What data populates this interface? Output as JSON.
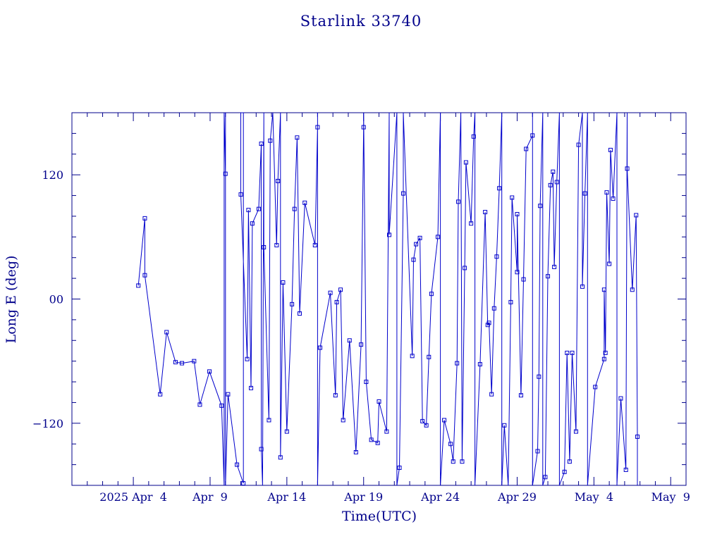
{
  "chart_data": {
    "type": "line",
    "title": "Starlink 33740",
    "xlabel": "Time(UTC)",
    "ylabel": "Long E (deg)",
    "x_is_date": true,
    "xlim": [
      "2025-03-31T00:00",
      "2025-05-10T00:00"
    ],
    "ylim": [
      -180,
      180
    ],
    "grid": false,
    "legend": "none",
    "color": "#0000cc",
    "x_tick_labels": [
      {
        "date": "2025-04-04",
        "label": "2025 Apr  4"
      },
      {
        "date": "2025-04-09",
        "label": "Apr  9"
      },
      {
        "date": "2025-04-14",
        "label": "Apr 14"
      },
      {
        "date": "2025-04-19",
        "label": "Apr 19"
      },
      {
        "date": "2025-04-24",
        "label": "Apr 24"
      },
      {
        "date": "2025-04-29",
        "label": "Apr 29"
      },
      {
        "date": "2025-05-04",
        "label": "May  4"
      },
      {
        "date": "2025-05-09",
        "label": "May  9"
      }
    ],
    "y_ticks": [
      -120,
      0,
      120
    ],
    "y_tick_labels": [
      "−120",
      "00",
      "120"
    ],
    "points": [
      [
        "2025-04-04 07:50",
        13
      ],
      [
        "2025-04-04 18:00",
        78
      ],
      [
        "2025-04-04 18:00",
        23
      ],
      [
        "2025-04-05 18:00",
        -92
      ],
      [
        "2025-04-06 04:00",
        -32
      ],
      [
        "2025-04-06 18:00",
        -61
      ],
      [
        "2025-04-07 04:00",
        -62
      ],
      [
        "2025-04-07 23:00",
        -60
      ],
      [
        "2025-04-08 08:00",
        -102
      ],
      [
        "2025-04-08 23:00",
        -70
      ],
      [
        "2025-04-09 18:00",
        -103
      ],
      [
        "2025-04-09 22:00",
        -180
      ],
      [
        "2025-04-09 22:00",
        180
      ],
      [
        "2025-04-10 00:00",
        121
      ],
      [
        "2025-04-10 00:00",
        180
      ],
      [
        "2025-04-10 00:00",
        -180
      ],
      [
        "2025-04-10 04:00",
        -92
      ],
      [
        "2025-04-10 18:00",
        -160
      ],
      [
        "2025-04-11 04:00",
        -178
      ],
      [
        "2025-04-11 04:00",
        180
      ],
      [
        "2025-04-11 00:00",
        180
      ],
      [
        "2025-04-11 00:00",
        101
      ],
      [
        "2025-04-11 10:00",
        -58
      ],
      [
        "2025-04-11 12:00",
        86
      ],
      [
        "2025-04-11 16:00",
        -86
      ],
      [
        "2025-04-11 18:00",
        73
      ],
      [
        "2025-04-12 04:00",
        87
      ],
      [
        "2025-04-12 08:00",
        150
      ],
      [
        "2025-04-12 08:00",
        -145
      ],
      [
        "2025-04-12 10:00",
        -180
      ],
      [
        "2025-04-12 12:00",
        180
      ],
      [
        "2025-04-12 12:00",
        50
      ],
      [
        "2025-04-12 20:00",
        -117
      ],
      [
        "2025-04-12 22:00",
        153
      ],
      [
        "2025-04-13 02:00",
        180
      ],
      [
        "2025-04-13 08:00",
        52
      ],
      [
        "2025-04-13 10:00",
        114
      ],
      [
        "2025-04-13 14:00",
        180
      ],
      [
        "2025-04-13 14:00",
        -153
      ],
      [
        "2025-04-13 18:00",
        16
      ],
      [
        "2025-04-14 00:00",
        -128
      ],
      [
        "2025-04-14 08:00",
        -5
      ],
      [
        "2025-04-14 12:00",
        87
      ],
      [
        "2025-04-14 16:00",
        156
      ],
      [
        "2025-04-14 20:00",
        -14
      ],
      [
        "2025-04-15 04:00",
        93
      ],
      [
        "2025-04-15 20:00",
        52
      ],
      [
        "2025-04-16 00:00",
        166
      ],
      [
        "2025-04-16 00:00",
        180
      ],
      [
        "2025-04-16 00:00",
        -180
      ],
      [
        "2025-04-16 04:00",
        -47
      ],
      [
        "2025-04-16 20:00",
        6
      ],
      [
        "2025-04-17 04:00",
        -93
      ],
      [
        "2025-04-17 06:00",
        -3
      ],
      [
        "2025-04-17 12:00",
        9
      ],
      [
        "2025-04-17 16:00",
        -117
      ],
      [
        "2025-04-18 02:00",
        -40
      ],
      [
        "2025-04-18 12:00",
        -148
      ],
      [
        "2025-04-18 20:00",
        -44
      ],
      [
        "2025-04-19 00:00",
        166
      ],
      [
        "2025-04-19 00:00",
        180
      ],
      [
        "2025-04-19 04:00",
        -80
      ],
      [
        "2025-04-19 12:00",
        -136
      ],
      [
        "2025-04-19 22:00",
        -139
      ],
      [
        "2025-04-20 00:00",
        -99
      ],
      [
        "2025-04-20 12:00",
        -128
      ],
      [
        "2025-04-20 16:00",
        180
      ],
      [
        "2025-04-20 16:00",
        62
      ],
      [
        "2025-04-21 04:00",
        180
      ],
      [
        "2025-04-21 04:00",
        -180
      ],
      [
        "2025-04-21 08:00",
        -163
      ],
      [
        "2025-04-21 14:00",
        102
      ],
      [
        "2025-04-21 14:00",
        180
      ],
      [
        "2025-04-22 04:00",
        -55
      ],
      [
        "2025-04-22 06:00",
        38
      ],
      [
        "2025-04-22 10:00",
        53
      ],
      [
        "2025-04-22 16:00",
        59
      ],
      [
        "2025-04-22 20:00",
        -118
      ],
      [
        "2025-04-23 02:00",
        -122
      ],
      [
        "2025-04-23 06:00",
        -56
      ],
      [
        "2025-04-23 10:00",
        5
      ],
      [
        "2025-04-23 20:00",
        60
      ],
      [
        "2025-04-24 00:00",
        180
      ],
      [
        "2025-04-24 00:00",
        -180
      ],
      [
        "2025-04-24 06:00",
        -117
      ],
      [
        "2025-04-24 16:00",
        -140
      ],
      [
        "2025-04-24 20:00",
        -157
      ],
      [
        "2025-04-25 02:00",
        -62
      ],
      [
        "2025-04-25 04:00",
        94
      ],
      [
        "2025-04-25 08:00",
        180
      ],
      [
        "2025-04-25 10:00",
        -157
      ],
      [
        "2025-04-25 14:00",
        30
      ],
      [
        "2025-04-25 16:00",
        132
      ],
      [
        "2025-04-26 00:00",
        73
      ],
      [
        "2025-04-26 04:00",
        157
      ],
      [
        "2025-04-26 06:00",
        180
      ],
      [
        "2025-04-26 06:00",
        -180
      ],
      [
        "2025-04-26 14:00",
        -63
      ],
      [
        "2025-04-26 22:00",
        84
      ],
      [
        "2025-04-27 02:00",
        -25
      ],
      [
        "2025-04-27 04:00",
        -23
      ],
      [
        "2025-04-27 08:00",
        -92
      ],
      [
        "2025-04-27 12:00",
        -9
      ],
      [
        "2025-04-27 16:00",
        41
      ],
      [
        "2025-04-27 20:00",
        107
      ],
      [
        "2025-04-28 00:00",
        180
      ],
      [
        "2025-04-28 00:00",
        -180
      ],
      [
        "2025-04-28 04:00",
        -122
      ],
      [
        "2025-04-28 10:00",
        -180
      ],
      [
        "2025-04-28 14:00",
        -3
      ],
      [
        "2025-04-28 16:00",
        98
      ],
      [
        "2025-04-29 00:00",
        26
      ],
      [
        "2025-04-29 00:00",
        82
      ],
      [
        "2025-04-29 06:00",
        -93
      ],
      [
        "2025-04-29 10:00",
        19
      ],
      [
        "2025-04-29 14:00",
        145
      ],
      [
        "2025-04-30 00:00",
        158
      ],
      [
        "2025-04-30 00:00",
        180
      ],
      [
        "2025-04-30 00:00",
        -180
      ],
      [
        "2025-04-30 08:00",
        -147
      ],
      [
        "2025-04-30 10:00",
        -75
      ],
      [
        "2025-04-30 12:00",
        90
      ],
      [
        "2025-04-30 16:00",
        180
      ],
      [
        "2025-04-30 16:00",
        -180
      ],
      [
        "2025-04-30 20:00",
        -172
      ],
      [
        "2025-05-01 00:00",
        22
      ],
      [
        "2025-05-01 04:00",
        110
      ],
      [
        "2025-05-01 08:00",
        123
      ],
      [
        "2025-05-01 10:00",
        31
      ],
      [
        "2025-05-01 14:00",
        113
      ],
      [
        "2025-05-01 18:00",
        180
      ],
      [
        "2025-05-01 18:00",
        -180
      ],
      [
        "2025-05-02 02:00",
        -167
      ],
      [
        "2025-05-02 06:00",
        -52
      ],
      [
        "2025-05-02 10:00",
        -157
      ],
      [
        "2025-05-02 14:00",
        -52
      ],
      [
        "2025-05-02 20:00",
        -128
      ],
      [
        "2025-05-03 00:00",
        149
      ],
      [
        "2025-05-03 06:00",
        180
      ],
      [
        "2025-05-03 06:00",
        12
      ],
      [
        "2025-05-03 10:00",
        102
      ],
      [
        "2025-05-03 14:00",
        180
      ],
      [
        "2025-05-03 14:00",
        -180
      ],
      [
        "2025-05-04 02:00",
        -85
      ],
      [
        "2025-05-04 16:00",
        -58
      ],
      [
        "2025-05-04 16:00",
        9
      ],
      [
        "2025-05-04 18:00",
        -52
      ],
      [
        "2025-05-04 20:00",
        103
      ],
      [
        "2025-05-05 00:00",
        34
      ],
      [
        "2025-05-05 02:00",
        144
      ],
      [
        "2025-05-05 06:00",
        97
      ],
      [
        "2025-05-05 12:00",
        180
      ],
      [
        "2025-05-05 12:00",
        -180
      ],
      [
        "2025-05-05 18:00",
        -96
      ],
      [
        "2025-05-06 02:00",
        -165
      ],
      [
        "2025-05-06 04:00",
        180
      ],
      [
        "2025-05-06 04:00",
        126
      ],
      [
        "2025-05-06 12:00",
        9
      ],
      [
        "2025-05-06 18:00",
        81
      ],
      [
        "2025-05-06 20:00",
        -133
      ],
      [
        "2025-05-06 20:00",
        -180
      ]
    ]
  }
}
